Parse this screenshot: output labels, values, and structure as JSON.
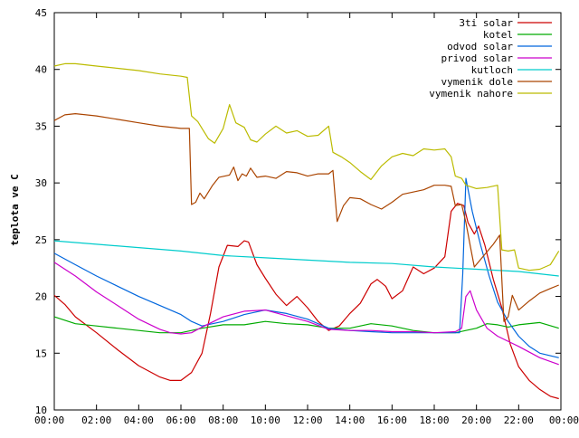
{
  "chart_data": {
    "type": "line",
    "title": "",
    "xlabel": "",
    "ylabel": "teplota ve C",
    "xlim": [
      0,
      24
    ],
    "ylim": [
      10,
      45
    ],
    "x_ticks": [
      "00:00",
      "02:00",
      "04:00",
      "06:00",
      "08:00",
      "10:00",
      "12:00",
      "14:00",
      "16:00",
      "18:00",
      "20:00",
      "22:00",
      "00:00"
    ],
    "y_ticks": [
      10,
      15,
      20,
      25,
      30,
      35,
      40,
      45
    ],
    "grid": false,
    "legend_position": "top-right",
    "series": [
      {
        "name": "3ti solar",
        "color": "#cc0000",
        "points": [
          [
            0,
            20.1
          ],
          [
            0.5,
            19.3
          ],
          [
            1,
            18.2
          ],
          [
            2,
            16.8
          ],
          [
            3,
            15.3
          ],
          [
            4,
            13.9
          ],
          [
            5,
            12.9
          ],
          [
            5.5,
            12.6
          ],
          [
            6,
            12.6
          ],
          [
            6.5,
            13.3
          ],
          [
            7,
            15.0
          ],
          [
            7.4,
            18.5
          ],
          [
            7.8,
            22.6
          ],
          [
            8.2,
            24.5
          ],
          [
            8.7,
            24.4
          ],
          [
            9,
            24.9
          ],
          [
            9.2,
            24.8
          ],
          [
            9.6,
            22.8
          ],
          [
            10,
            21.6
          ],
          [
            10.5,
            20.2
          ],
          [
            11,
            19.2
          ],
          [
            11.5,
            20.0
          ],
          [
            12,
            19.0
          ],
          [
            12.5,
            17.8
          ],
          [
            13,
            17.0
          ],
          [
            13.5,
            17.4
          ],
          [
            14,
            18.5
          ],
          [
            14.5,
            19.4
          ],
          [
            15,
            21.1
          ],
          [
            15.3,
            21.5
          ],
          [
            15.7,
            20.9
          ],
          [
            16,
            19.8
          ],
          [
            16.5,
            20.5
          ],
          [
            17,
            22.6
          ],
          [
            17.5,
            22.0
          ],
          [
            18,
            22.5
          ],
          [
            18.5,
            23.5
          ],
          [
            18.8,
            27.5
          ],
          [
            19.1,
            28.2
          ],
          [
            19.4,
            28.0
          ],
          [
            19.6,
            26.5
          ],
          [
            19.9,
            25.5
          ],
          [
            20.1,
            26.2
          ],
          [
            20.4,
            24.5
          ],
          [
            20.8,
            21.5
          ],
          [
            21.2,
            19.0
          ],
          [
            21.6,
            15.8
          ],
          [
            22,
            13.8
          ],
          [
            22.5,
            12.6
          ],
          [
            23,
            11.8
          ],
          [
            23.5,
            11.2
          ],
          [
            23.9,
            11.0
          ]
        ]
      },
      {
        "name": "kotel",
        "color": "#00aa00",
        "points": [
          [
            0,
            18.2
          ],
          [
            1,
            17.6
          ],
          [
            2,
            17.4
          ],
          [
            3,
            17.2
          ],
          [
            4,
            17.0
          ],
          [
            5,
            16.8
          ],
          [
            6,
            16.8
          ],
          [
            7,
            17.2
          ],
          [
            8,
            17.5
          ],
          [
            9,
            17.5
          ],
          [
            10,
            17.8
          ],
          [
            11,
            17.6
          ],
          [
            12,
            17.5
          ],
          [
            13,
            17.2
          ],
          [
            14,
            17.2
          ],
          [
            15,
            17.6
          ],
          [
            16,
            17.4
          ],
          [
            17,
            17.0
          ],
          [
            18,
            16.8
          ],
          [
            19,
            16.8
          ],
          [
            19.5,
            17.0
          ],
          [
            20,
            17.2
          ],
          [
            20.5,
            17.6
          ],
          [
            21,
            17.5
          ],
          [
            21.5,
            17.3
          ],
          [
            22,
            17.5
          ],
          [
            23,
            17.7
          ],
          [
            23.9,
            17.2
          ]
        ]
      },
      {
        "name": "odvod solar",
        "color": "#0066dd",
        "points": [
          [
            0,
            23.8
          ],
          [
            1,
            22.8
          ],
          [
            2,
            21.8
          ],
          [
            3,
            20.9
          ],
          [
            4,
            20.0
          ],
          [
            5,
            19.2
          ],
          [
            6,
            18.4
          ],
          [
            6.5,
            17.8
          ],
          [
            7,
            17.4
          ],
          [
            8,
            17.8
          ],
          [
            9,
            18.4
          ],
          [
            10,
            18.8
          ],
          [
            11,
            18.5
          ],
          [
            12,
            18.0
          ],
          [
            13,
            17.2
          ],
          [
            14,
            17.0
          ],
          [
            15,
            16.9
          ],
          [
            16,
            16.8
          ],
          [
            17,
            16.8
          ],
          [
            18,
            16.8
          ],
          [
            19.2,
            16.8
          ],
          [
            19.35,
            22.0
          ],
          [
            19.5,
            30.4
          ],
          [
            19.8,
            27.5
          ],
          [
            20.2,
            24.5
          ],
          [
            20.6,
            21.8
          ],
          [
            21,
            19.5
          ],
          [
            21.5,
            17.8
          ],
          [
            22,
            16.5
          ],
          [
            22.5,
            15.6
          ],
          [
            23,
            15.0
          ],
          [
            23.9,
            14.6
          ]
        ]
      },
      {
        "name": "privod solar",
        "color": "#cc00cc",
        "points": [
          [
            0,
            23.0
          ],
          [
            1,
            21.8
          ],
          [
            2,
            20.4
          ],
          [
            3,
            19.2
          ],
          [
            4,
            18.0
          ],
          [
            5,
            17.1
          ],
          [
            5.5,
            16.8
          ],
          [
            6,
            16.7
          ],
          [
            6.5,
            16.8
          ],
          [
            7,
            17.3
          ],
          [
            8,
            18.2
          ],
          [
            9,
            18.7
          ],
          [
            10,
            18.8
          ],
          [
            11,
            18.3
          ],
          [
            12,
            17.8
          ],
          [
            13,
            17.1
          ],
          [
            14,
            17.0
          ],
          [
            15,
            17.0
          ],
          [
            16,
            16.9
          ],
          [
            17,
            16.9
          ],
          [
            18,
            16.8
          ],
          [
            19,
            16.9
          ],
          [
            19.3,
            17.2
          ],
          [
            19.5,
            20.0
          ],
          [
            19.7,
            20.5
          ],
          [
            20,
            18.8
          ],
          [
            20.5,
            17.2
          ],
          [
            21,
            16.5
          ],
          [
            22,
            15.6
          ],
          [
            23,
            14.6
          ],
          [
            23.9,
            14.0
          ]
        ]
      },
      {
        "name": "kutloch",
        "color": "#00cccc",
        "points": [
          [
            0,
            24.9
          ],
          [
            2,
            24.6
          ],
          [
            4,
            24.3
          ],
          [
            6,
            24.0
          ],
          [
            8,
            23.6
          ],
          [
            10,
            23.4
          ],
          [
            12,
            23.2
          ],
          [
            14,
            23.0
          ],
          [
            16,
            22.9
          ],
          [
            18,
            22.6
          ],
          [
            20,
            22.4
          ],
          [
            22,
            22.2
          ],
          [
            23.9,
            21.8
          ]
        ]
      },
      {
        "name": "vymenik dole",
        "color": "#aa4400",
        "points": [
          [
            0,
            35.5
          ],
          [
            0.5,
            36.0
          ],
          [
            1,
            36.1
          ],
          [
            2,
            35.9
          ],
          [
            3,
            35.6
          ],
          [
            4,
            35.3
          ],
          [
            5,
            35.0
          ],
          [
            6,
            34.8
          ],
          [
            6.4,
            34.8
          ],
          [
            6.5,
            28.1
          ],
          [
            6.7,
            28.3
          ],
          [
            6.9,
            29.1
          ],
          [
            7.1,
            28.6
          ],
          [
            7.5,
            29.8
          ],
          [
            7.8,
            30.5
          ],
          [
            8.3,
            30.7
          ],
          [
            8.5,
            31.4
          ],
          [
            8.7,
            30.2
          ],
          [
            8.9,
            30.8
          ],
          [
            9.1,
            30.6
          ],
          [
            9.3,
            31.3
          ],
          [
            9.6,
            30.5
          ],
          [
            10,
            30.6
          ],
          [
            10.5,
            30.4
          ],
          [
            11,
            31.0
          ],
          [
            11.5,
            30.9
          ],
          [
            12,
            30.6
          ],
          [
            12.5,
            30.8
          ],
          [
            13,
            30.8
          ],
          [
            13.2,
            31.1
          ],
          [
            13.4,
            26.6
          ],
          [
            13.7,
            28.0
          ],
          [
            14,
            28.7
          ],
          [
            14.5,
            28.6
          ],
          [
            15,
            28.1
          ],
          [
            15.5,
            27.7
          ],
          [
            16,
            28.3
          ],
          [
            16.5,
            29.0
          ],
          [
            17,
            29.2
          ],
          [
            17.5,
            29.4
          ],
          [
            18,
            29.8
          ],
          [
            18.5,
            29.8
          ],
          [
            18.8,
            29.7
          ],
          [
            19,
            28.0
          ],
          [
            19.3,
            28.1
          ],
          [
            19.5,
            26.5
          ],
          [
            19.7,
            24.5
          ],
          [
            19.9,
            22.6
          ],
          [
            20.3,
            23.5
          ],
          [
            20.8,
            24.6
          ],
          [
            21.1,
            25.4
          ],
          [
            21.3,
            17.8
          ],
          [
            21.5,
            18.2
          ],
          [
            21.7,
            20.1
          ],
          [
            22,
            18.8
          ],
          [
            22.5,
            19.6
          ],
          [
            23,
            20.3
          ],
          [
            23.5,
            20.7
          ],
          [
            23.9,
            21.0
          ]
        ]
      },
      {
        "name": "vymenik nahore",
        "color": "#bbbb00",
        "points": [
          [
            0,
            40.3
          ],
          [
            0.5,
            40.5
          ],
          [
            1,
            40.5
          ],
          [
            2,
            40.3
          ],
          [
            3,
            40.1
          ],
          [
            4,
            39.9
          ],
          [
            5,
            39.6
          ],
          [
            6,
            39.4
          ],
          [
            6.3,
            39.3
          ],
          [
            6.5,
            35.9
          ],
          [
            6.8,
            35.4
          ],
          [
            7,
            34.8
          ],
          [
            7.3,
            33.9
          ],
          [
            7.6,
            33.5
          ],
          [
            8,
            34.8
          ],
          [
            8.3,
            36.9
          ],
          [
            8.6,
            35.3
          ],
          [
            9,
            34.9
          ],
          [
            9.3,
            33.8
          ],
          [
            9.6,
            33.6
          ],
          [
            10,
            34.3
          ],
          [
            10.5,
            35.0
          ],
          [
            11,
            34.4
          ],
          [
            11.5,
            34.6
          ],
          [
            12,
            34.1
          ],
          [
            12.5,
            34.2
          ],
          [
            13,
            35.0
          ],
          [
            13.2,
            32.7
          ],
          [
            13.6,
            32.3
          ],
          [
            14,
            31.8
          ],
          [
            14.5,
            31.0
          ],
          [
            15,
            30.3
          ],
          [
            15.5,
            31.5
          ],
          [
            16,
            32.3
          ],
          [
            16.5,
            32.6
          ],
          [
            17,
            32.4
          ],
          [
            17.5,
            33.0
          ],
          [
            18,
            32.9
          ],
          [
            18.5,
            33.0
          ],
          [
            18.8,
            32.3
          ],
          [
            19,
            30.6
          ],
          [
            19.3,
            30.4
          ],
          [
            19.5,
            29.8
          ],
          [
            20,
            29.5
          ],
          [
            20.5,
            29.6
          ],
          [
            21,
            29.8
          ],
          [
            21.2,
            24.1
          ],
          [
            21.5,
            24.0
          ],
          [
            21.8,
            24.1
          ],
          [
            22,
            22.5
          ],
          [
            22.5,
            22.3
          ],
          [
            23,
            22.4
          ],
          [
            23.5,
            22.8
          ],
          [
            23.9,
            24.0
          ]
        ]
      }
    ]
  }
}
